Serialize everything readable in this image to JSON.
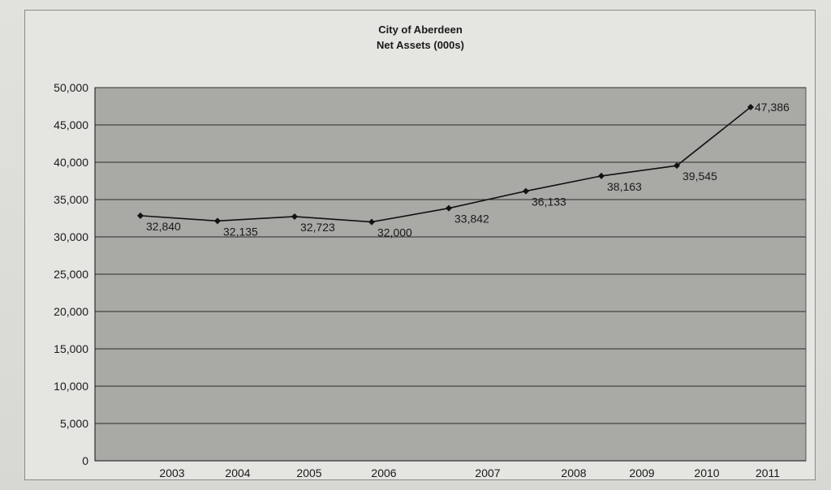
{
  "chart_data": {
    "type": "line",
    "title": "City of Aberdeen",
    "subtitle": "Net Assets (000s)",
    "xlabel": "",
    "ylabel": "",
    "categories": [
      "2003",
      "2004",
      "2005",
      "2006",
      "2007",
      "2008",
      "2009",
      "2010",
      "2011"
    ],
    "series": [
      {
        "values": [
          32840,
          32135,
          32723,
          32000,
          33842,
          36133,
          38163,
          39545,
          47386
        ],
        "value_labels": [
          "32,840",
          "32,135",
          "32,723",
          "32,000",
          "33,842",
          "36,133",
          "38,163",
          "39,545",
          "47,386"
        ]
      }
    ],
    "ylim": [
      0,
      50000
    ],
    "y_ticks": [
      0,
      5000,
      10000,
      15000,
      20000,
      25000,
      30000,
      35000,
      40000,
      45000,
      50000
    ],
    "y_tick_labels": [
      "0",
      "5,000",
      "10,000",
      "15,000",
      "20,000",
      "25,000",
      "30,000",
      "35,000",
      "40,000",
      "45,000",
      "50,000"
    ],
    "grid": true,
    "legend": "none",
    "colors": {
      "plot_background": "#a9a9a5",
      "line": "#111111",
      "gridline": "#2a2a2a"
    }
  }
}
